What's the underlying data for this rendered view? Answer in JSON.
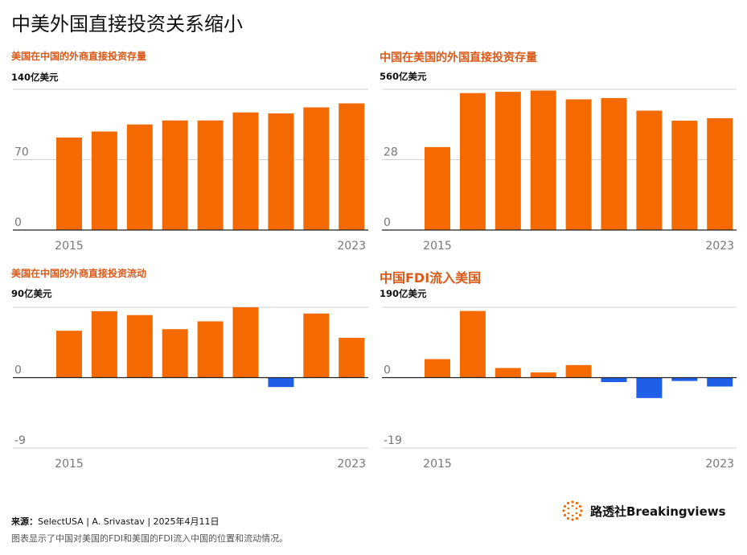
{
  "title": "中美外国直接投资关系缩小",
  "colors": {
    "positive": "#f56a00",
    "negative": "#1f5fe8",
    "grid": "#d0d0d0",
    "axis": "#222222",
    "title_accent": "#d95a1a"
  },
  "panels": [
    {
      "title": "美国在中国的外商直接投资存量",
      "unit": "140亿美元"
    },
    {
      "title": "中国在美国的外国直接投资存量",
      "unit": "560亿美元"
    },
    {
      "title": "美国在中国的外商直接投资流动",
      "unit": "90亿美元"
    },
    {
      "title": "中国FDI流入美国",
      "unit": "190亿美元"
    }
  ],
  "chart_data": [
    {
      "type": "bar",
      "title": "美国在中国的外商直接投资存量",
      "unit": "140亿美元",
      "categories": [
        "2015",
        "2016",
        "2017",
        "2018",
        "2019",
        "2020",
        "2021",
        "2022",
        "2023"
      ],
      "x_tick_labels": [
        "2015",
        "2023"
      ],
      "y_tick_labels": [
        "0",
        "70"
      ],
      "ylim": [
        0,
        140
      ],
      "grid": true,
      "values": [
        92,
        98,
        105,
        109,
        109,
        117,
        116,
        122,
        126
      ]
    },
    {
      "type": "bar",
      "title": "中国在美国的外国直接投资存量",
      "unit": "560亿美元",
      "categories": [
        "2015",
        "2016",
        "2017",
        "2018",
        "2019",
        "2020",
        "2021",
        "2022",
        "2023"
      ],
      "x_tick_labels": [
        "2015",
        "2023"
      ],
      "y_tick_labels": [
        "0",
        "28"
      ],
      "ylim": [
        0,
        56
      ],
      "grid": true,
      "values": [
        33,
        54.5,
        55,
        55.5,
        52,
        52.5,
        47.5,
        43.5,
        44.5
      ]
    },
    {
      "type": "bar",
      "title": "美国在中国的外商直接投资流动",
      "unit": "90亿美元",
      "categories": [
        "2015",
        "2016",
        "2017",
        "2018",
        "2019",
        "2020",
        "2021",
        "2022",
        "2023"
      ],
      "x_tick_labels": [
        "2015",
        "2023"
      ],
      "y_tick_labels": [
        "0",
        "-9"
      ],
      "ylim": [
        -9,
        9
      ],
      "grid": true,
      "values": [
        6,
        8.5,
        8,
        6.2,
        7.2,
        9,
        -1.2,
        8.2,
        5.1
      ]
    },
    {
      "type": "bar",
      "title": "中国FDI流入美国",
      "unit": "190亿美元",
      "categories": [
        "2015",
        "2016",
        "2017",
        "2018",
        "2019",
        "2020",
        "2021",
        "2022",
        "2023"
      ],
      "x_tick_labels": [
        "2015",
        "2023"
      ],
      "y_tick_labels": [
        "0",
        "-19"
      ],
      "ylim": [
        -19,
        19
      ],
      "grid": true,
      "values": [
        5,
        18,
        2.6,
        1.4,
        3.4,
        -1.2,
        -5.5,
        -0.9,
        -2.4
      ]
    }
  ],
  "footer": {
    "source_label": "来源：",
    "source_text": "SelectUSA | A. Srivastav | 2025年4月11日",
    "note": "图表显示了中国对美国的FDI和美国的FDI流入中国的位置和流动情况。",
    "brand": "路透社Breakingviews"
  }
}
